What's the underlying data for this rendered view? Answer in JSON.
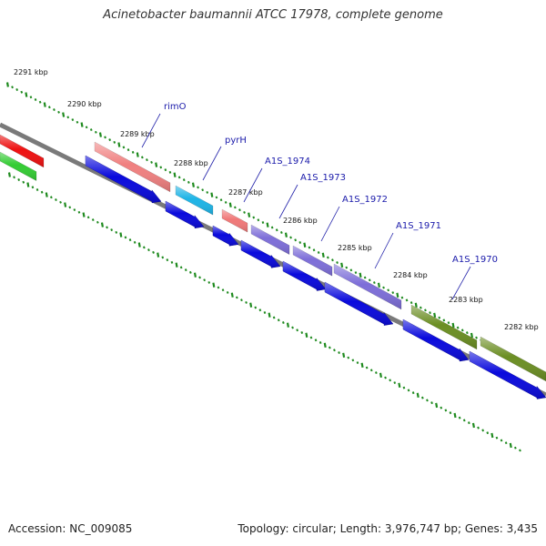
{
  "title": "Acinetobacter baumannii ATCC 17978, complete genome",
  "footer": {
    "accession": "Accession: NC_009085",
    "topology": "Topology: circular; Length: 3,976,747 bp; Genes: 3,435"
  },
  "colors": {
    "backbone": "#7a7a7a",
    "tick": "#1e8a1e",
    "orf": "#0a0adc",
    "label_line": "#2323aa"
  },
  "scale_labels": [
    "2291 kbp",
    "2290 kbp",
    "2289 kbp",
    "2288 kbp",
    "2287 kbp",
    "2286 kbp",
    "2285 kbp",
    "2284 kbp",
    "2283 kbp",
    "2282 kbp"
  ],
  "gene_labels": [
    "rimO",
    "pyrH",
    "A1S_1974",
    "A1S_1973",
    "A1S_1972",
    "A1S_1971",
    "A1S_1970"
  ],
  "features": [
    {
      "color": "#ee1111"
    },
    {
      "color": "#33cc33"
    },
    {
      "color": "#f08080"
    },
    {
      "color": "#1eb4e6"
    },
    {
      "color": "#f07878"
    },
    {
      "color": "#7d6ed8"
    },
    {
      "color": "#7d6ed8"
    },
    {
      "color": "#7d6ed8"
    },
    {
      "color": "#6b8e23"
    },
    {
      "color": "#6b8e23"
    }
  ]
}
